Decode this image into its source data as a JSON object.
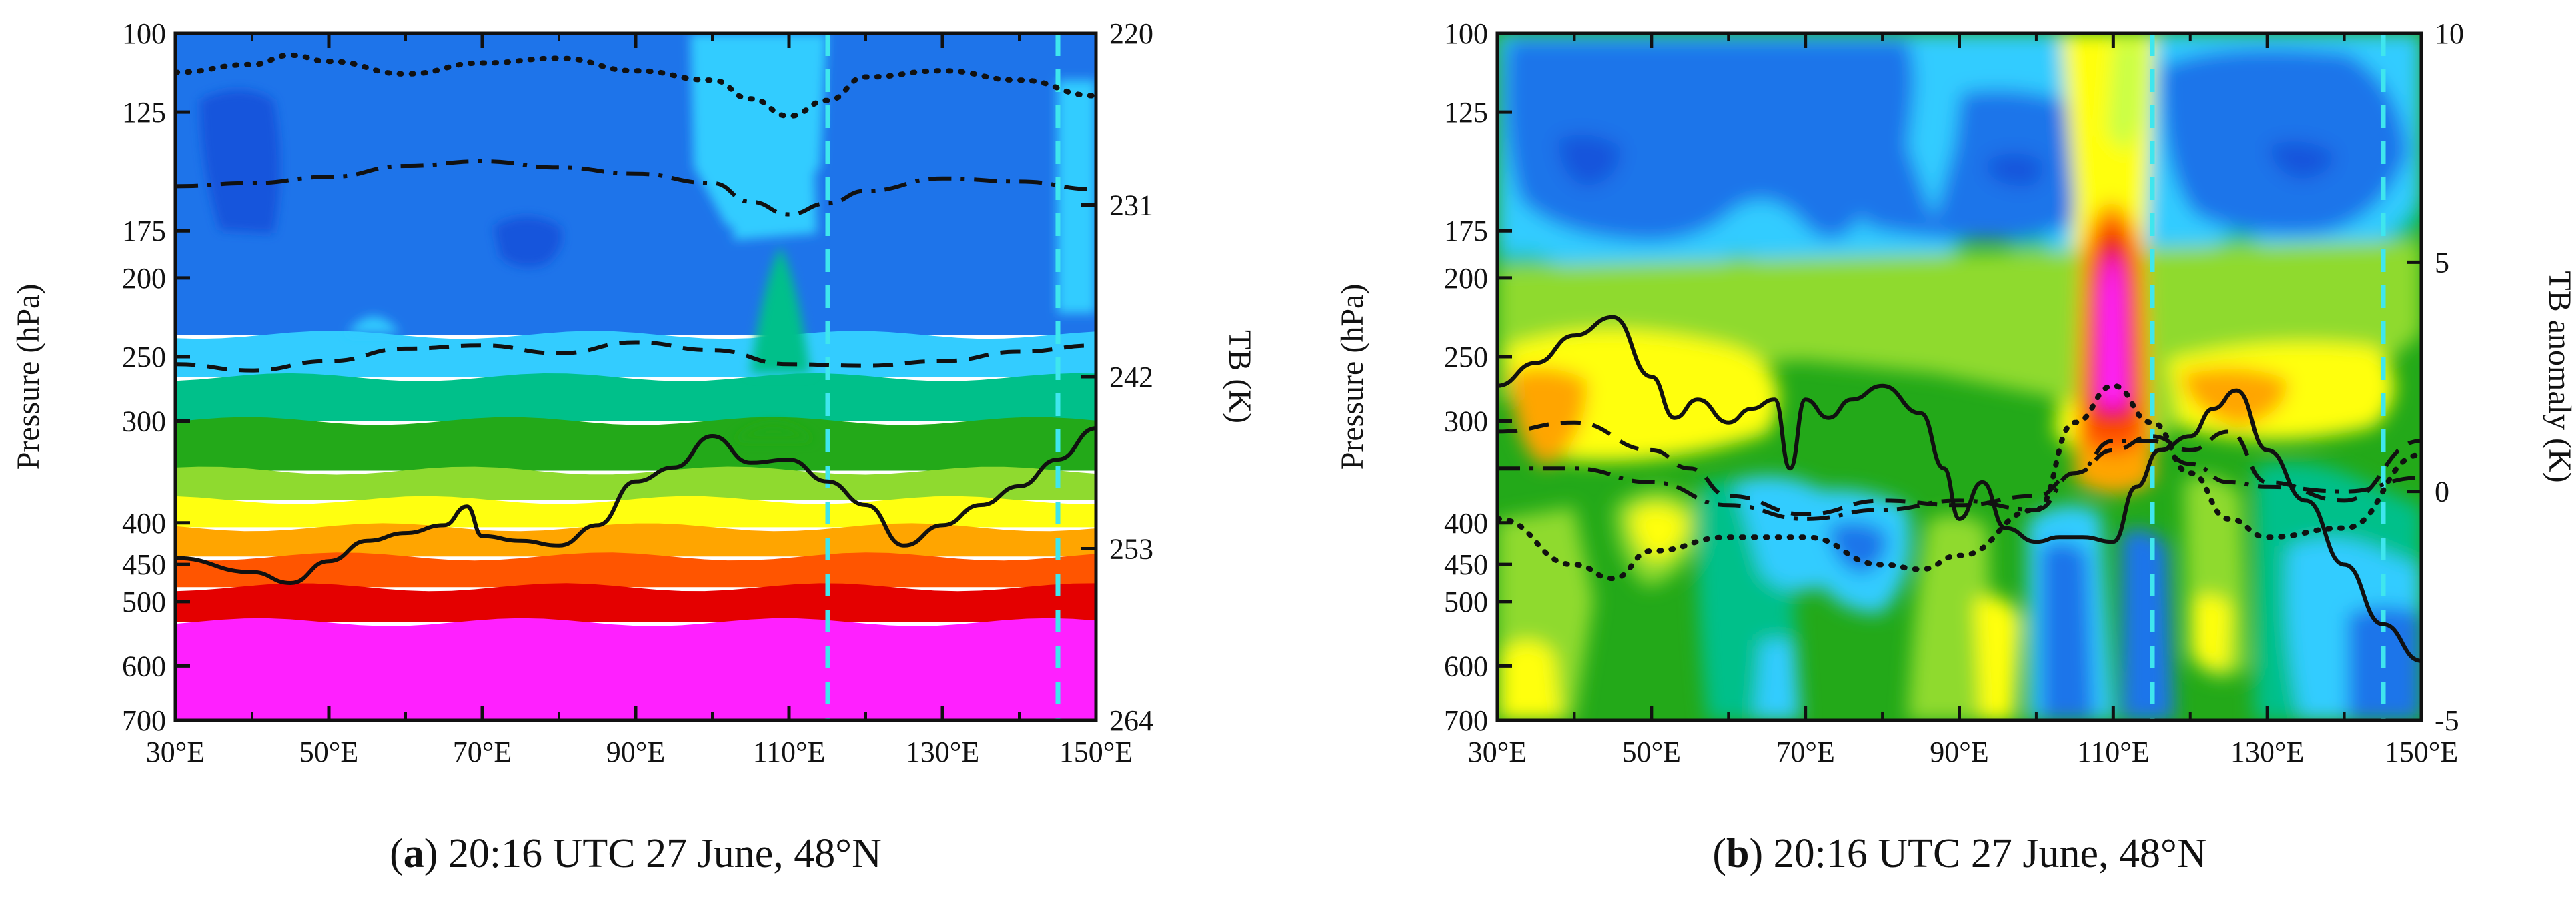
{
  "chart_data": [
    {
      "type": "contour-cross-section",
      "panel_label": "a",
      "caption_rest": ") 20:16 UTC 27 June, 48°N",
      "x": {
        "label_ticks": [
          "30°E",
          "50°E",
          "70°E",
          "90°E",
          "110°E",
          "130°E",
          "150°E"
        ],
        "range": [
          30,
          150
        ]
      },
      "y_left": {
        "label": "Pressure (hPa)",
        "ticks": [
          100,
          125,
          175,
          200,
          250,
          300,
          400,
          450,
          500,
          600,
          700
        ],
        "range": [
          100,
          700
        ],
        "scale": "log"
      },
      "y_right": {
        "label": "TB (K)",
        "ticks": [
          220,
          231,
          242,
          253,
          264
        ],
        "range": [
          220,
          264
        ]
      },
      "markers_lon": [
        115,
        145
      ],
      "fill_levels": [
        {
          "top": 100,
          "bottom": 235,
          "color": "#1e74ea"
        },
        {
          "top": 235,
          "bottom": 265,
          "color": "#33ccff"
        },
        {
          "top": 265,
          "bottom": 300,
          "color": "#00c08a"
        },
        {
          "top": 300,
          "bottom": 345,
          "color": "#23a919"
        },
        {
          "top": 345,
          "bottom": 375,
          "color": "#8fda2f"
        },
        {
          "top": 375,
          "bottom": 405,
          "color": "#ffff10"
        },
        {
          "top": 405,
          "bottom": 440,
          "color": "#ffa500"
        },
        {
          "top": 440,
          "bottom": 480,
          "color": "#ff5500"
        },
        {
          "top": 480,
          "bottom": 530,
          "color": "#e40000"
        },
        {
          "top": 530,
          "bottom": 700,
          "color": "#ff20ff"
        }
      ],
      "series": [
        {
          "name": "solid",
          "style": "solid",
          "lon": [
            30,
            40,
            45,
            50,
            55,
            60,
            65,
            68,
            70,
            75,
            80,
            85,
            90,
            95,
            100,
            105,
            110,
            115,
            120,
            125,
            130,
            135,
            140,
            145,
            150
          ],
          "tb": [
            253.6,
            254.5,
            255.2,
            253.8,
            252.5,
            252.0,
            251.5,
            250.3,
            252.2,
            252.5,
            252.8,
            251.5,
            248.7,
            247.8,
            245.8,
            247.5,
            247.3,
            248.7,
            250.2,
            252.8,
            251.5,
            250.2,
            249.0,
            247.3,
            245.3
          ]
        },
        {
          "name": "dashed",
          "style": "dashed",
          "lon": [
            30,
            40,
            50,
            60,
            70,
            80,
            90,
            100,
            110,
            120,
            130,
            140,
            150
          ],
          "tb": [
            241.2,
            241.6,
            241.0,
            240.2,
            240.0,
            240.5,
            239.8,
            240.3,
            241.2,
            241.3,
            241.0,
            240.4,
            240.0
          ]
        },
        {
          "name": "dashdot",
          "style": "dashdot",
          "lon": [
            30,
            40,
            50,
            60,
            70,
            80,
            90,
            100,
            105,
            110,
            115,
            120,
            130,
            140,
            150
          ],
          "tb": [
            229.8,
            229.6,
            229.2,
            228.5,
            228.2,
            228.6,
            229.0,
            229.6,
            230.8,
            231.6,
            230.9,
            230.1,
            229.3,
            229.5,
            230.0
          ]
        },
        {
          "name": "dotted",
          "style": "dotted",
          "lon": [
            30,
            40,
            45,
            50,
            60,
            70,
            80,
            90,
            100,
            105,
            110,
            115,
            120,
            130,
            140,
            150
          ],
          "tb": [
            222.5,
            222.0,
            221.4,
            221.8,
            222.6,
            221.9,
            221.6,
            222.4,
            223.0,
            224.2,
            225.3,
            224.3,
            222.8,
            222.4,
            223.0,
            224.0
          ]
        }
      ]
    },
    {
      "type": "contour-cross-section",
      "panel_label": "b",
      "caption_rest": ") 20:16 UTC 27 June, 48°N",
      "x": {
        "label_ticks": [
          "30°E",
          "50°E",
          "70°E",
          "90°E",
          "110°E",
          "130°E",
          "150°E"
        ],
        "range": [
          30,
          150
        ]
      },
      "y_left": {
        "label": "Pressure (hPa)",
        "ticks": [
          100,
          125,
          175,
          200,
          250,
          300,
          400,
          450,
          500,
          600,
          700
        ],
        "range": [
          100,
          700
        ],
        "scale": "log"
      },
      "y_right": {
        "label": "TB anomaly (K)",
        "ticks": [
          10,
          5,
          0,
          -5
        ],
        "range": [
          -5,
          10
        ]
      },
      "markers_lon": [
        115,
        145
      ],
      "series": [
        {
          "name": "solid",
          "style": "solid",
          "lon": [
            30,
            35,
            40,
            45,
            50,
            53,
            56,
            60,
            63,
            66,
            68,
            70,
            73,
            76,
            80,
            85,
            88,
            90,
            93,
            96,
            100,
            103,
            106,
            110,
            113,
            116,
            120,
            123,
            126,
            130,
            135,
            140,
            145,
            150
          ],
          "anom": [
            2.3,
            2.8,
            3.4,
            3.8,
            2.5,
            1.6,
            2.0,
            1.5,
            1.8,
            2.0,
            0.5,
            2.0,
            1.6,
            2.0,
            2.3,
            1.7,
            0.5,
            -0.6,
            0.2,
            -0.8,
            -1.1,
            -1.0,
            -1.0,
            -1.1,
            0.1,
            0.9,
            1.2,
            1.8,
            2.2,
            0.9,
            -0.2,
            -1.6,
            -2.9,
            -3.7
          ]
        },
        {
          "name": "dashed",
          "style": "dashed",
          "lon": [
            30,
            40,
            50,
            55,
            60,
            70,
            80,
            90,
            100,
            105,
            110,
            115,
            120,
            125,
            130,
            140,
            150
          ],
          "anom": [
            1.3,
            1.5,
            0.9,
            0.5,
            -0.1,
            -0.5,
            -0.2,
            -0.3,
            -0.1,
            0.4,
            0.9,
            1.2,
            0.9,
            1.3,
            0.2,
            -0.2,
            1.1
          ]
        },
        {
          "name": "dashdot",
          "style": "dashdot",
          "lon": [
            30,
            40,
            50,
            60,
            70,
            80,
            90,
            100,
            105,
            110,
            115,
            120,
            125,
            130,
            140,
            150
          ],
          "anom": [
            0.5,
            0.5,
            0.2,
            -0.3,
            -0.6,
            -0.4,
            -0.2,
            -0.4,
            0.4,
            1.1,
            1.1,
            0.6,
            0.2,
            0.1,
            0.0,
            0.3
          ]
        },
        {
          "name": "dotted",
          "style": "dotted",
          "lon": [
            30,
            40,
            45,
            50,
            60,
            70,
            80,
            85,
            90,
            100,
            105,
            110,
            115,
            120,
            125,
            130,
            140,
            150
          ],
          "anom": [
            -0.6,
            -1.6,
            -1.9,
            -1.3,
            -1.0,
            -1.0,
            -1.6,
            -1.7,
            -1.4,
            -0.4,
            1.5,
            2.3,
            1.5,
            0.4,
            -0.6,
            -1.0,
            -0.8,
            0.8
          ]
        }
      ]
    }
  ]
}
